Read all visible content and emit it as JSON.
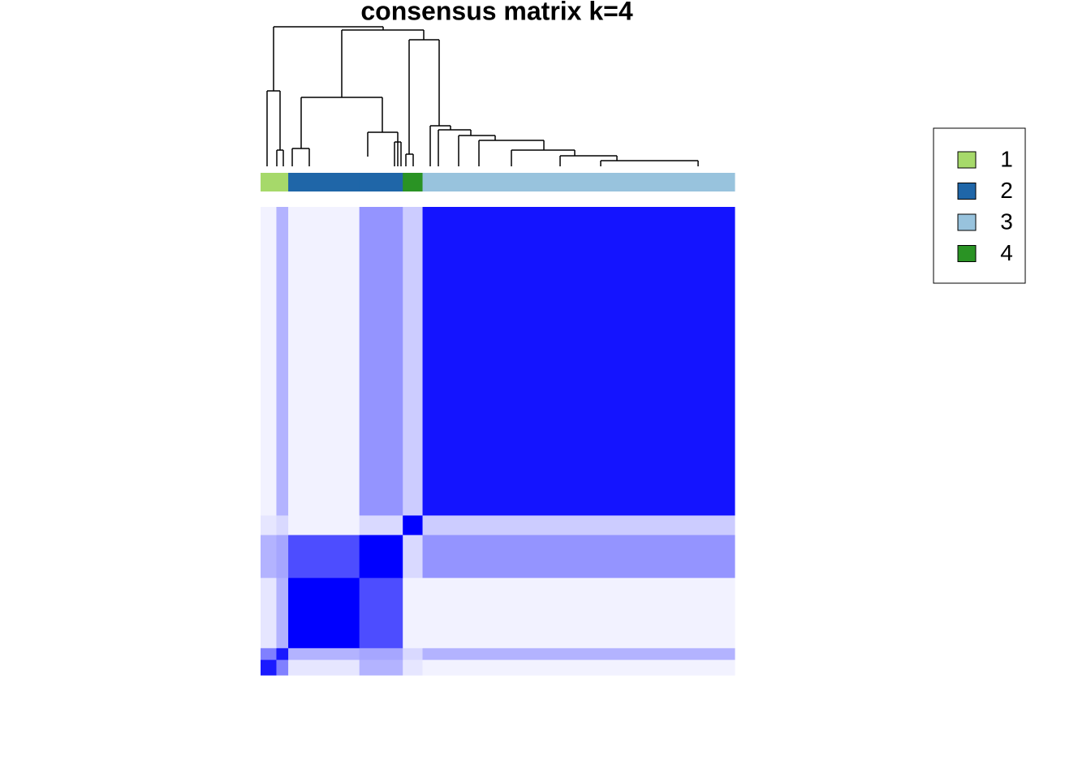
{
  "chart_data": {
    "type": "heatmap",
    "title": "consensus matrix k=4",
    "group_sizes": [
      4,
      3,
      18,
      11,
      5,
      79
    ],
    "group_classes": [
      1,
      1,
      2,
      2,
      4,
      3
    ],
    "values": [
      [
        0.9,
        0.5,
        0.1,
        0.3,
        0.1,
        0.05
      ],
      [
        0.5,
        0.9,
        0.3,
        0.35,
        0.15,
        0.3
      ],
      [
        0.1,
        0.3,
        1,
        0.7,
        0.05,
        0.05
      ],
      [
        0.3,
        0.35,
        0.7,
        1,
        0.15,
        0.42
      ],
      [
        0.1,
        0.15,
        0.05,
        0.15,
        1,
        0.2
      ],
      [
        0.05,
        0.3,
        0.05,
        0.42,
        0.2,
        0.92
      ]
    ],
    "color_low": "#ffffff",
    "color_high": "#0000ff",
    "series": [
      {
        "name": "1",
        "color": "#a6d96a"
      },
      {
        "name": "2",
        "color": "#1f66a8"
      },
      {
        "name": "3",
        "color": "#98c3dd"
      },
      {
        "name": "4",
        "color": "#2a9324"
      }
    ]
  }
}
